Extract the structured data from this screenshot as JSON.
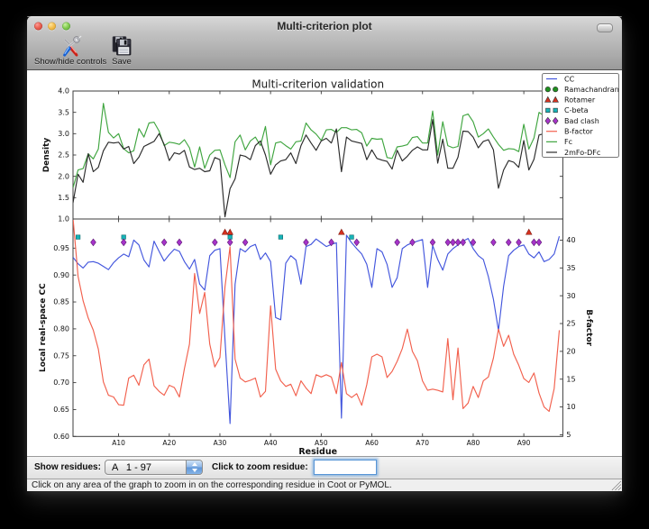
{
  "window": {
    "title": "Multi-criterion plot",
    "traffic_lights": [
      "close",
      "minimize",
      "zoom"
    ]
  },
  "toolbar": {
    "buttons": [
      {
        "label": "Show/hide controls",
        "icon": "tools-icon"
      },
      {
        "label": "Save",
        "icon": "save-icon"
      }
    ]
  },
  "controls": {
    "show_residues_label": "Show residues:",
    "chain_select_value": "A   1 - 97",
    "zoom_residue_label": "Click to zoom residue:",
    "zoom_input_value": "",
    "zoom_input_placeholder": ""
  },
  "status_bar": {
    "text": "Click on any area of the graph to zoom in on the corresponding residue in Coot or PyMOL."
  },
  "chart_data": {
    "type": "line",
    "title": "Multi-criterion validation",
    "xlabel": "Residue",
    "x_start": 1,
    "x_end": 97,
    "x_tick_values": [
      10,
      20,
      30,
      40,
      50,
      60,
      70,
      80,
      90
    ],
    "x_tick_labels": [
      "A10",
      "A20",
      "A30",
      "A40",
      "A50",
      "A60",
      "A70",
      "A80",
      "A90"
    ],
    "grid": false,
    "legend_position": "upper right",
    "legend": [
      {
        "name": "CC",
        "kind": "line",
        "color": "#4356dd"
      },
      {
        "name": "Ramachandran",
        "kind": "circle",
        "color": "#1f8f1f"
      },
      {
        "name": "Rotamer",
        "kind": "triangle",
        "color": "#d5311f"
      },
      {
        "name": "C-beta",
        "kind": "square",
        "color": "#17b4b8"
      },
      {
        "name": "Bad clash",
        "kind": "diamond",
        "color": "#a633c9"
      },
      {
        "name": "B-factor",
        "kind": "line",
        "color": "#f2604d"
      },
      {
        "name": "Fc",
        "kind": "line",
        "color": "#3fa53f"
      },
      {
        "name": "2mFo-DFc",
        "kind": "line",
        "color": "#2b2b2b"
      }
    ],
    "top_plot": {
      "ylabel": "Density",
      "ylim": [
        1.0,
        4.0
      ],
      "y_ticks": [
        1.0,
        1.5,
        2.0,
        2.5,
        3.0,
        3.5,
        4.0
      ],
      "series": [
        {
          "name": "Fc",
          "color": "#3fa53f",
          "values": [
            1.73,
            2.15,
            2.18,
            2.53,
            2.41,
            2.64,
            3.71,
            3.03,
            2.9,
            3.0,
            2.65,
            2.55,
            2.6,
            3.12,
            2.92,
            3.25,
            3.27,
            3.06,
            2.72,
            2.8,
            2.78,
            2.75,
            2.86,
            2.67,
            2.22,
            2.69,
            2.19,
            2.5,
            2.61,
            2.62,
            2.27,
            1.97,
            2.81,
            2.97,
            2.62,
            2.83,
            2.92,
            2.72,
            3.17,
            2.27,
            2.78,
            2.81,
            2.72,
            2.64,
            2.81,
            2.83,
            3.25,
            3.09,
            2.99,
            2.84,
            3.09,
            3.1,
            3.03,
            3.14,
            3.14,
            3.09,
            3.1,
            3.02,
            2.71,
            2.89,
            2.87,
            2.88,
            2.44,
            2.42,
            2.69,
            2.71,
            2.74,
            2.91,
            2.93,
            2.78,
            2.78,
            3.53,
            2.5,
            3.28,
            2.72,
            2.67,
            2.7,
            3.42,
            3.46,
            3.28,
            2.92,
            3.0,
            3.11,
            2.92,
            2.75,
            2.61,
            2.65,
            2.64,
            2.58,
            3.22,
            2.64,
            2.9,
            3.5,
            3.42,
            3.3,
            3.38,
            3.55
          ]
        },
        {
          "name": "2mFo-DFc",
          "color": "#2b2b2b",
          "values": [
            1.38,
            2.05,
            1.86,
            2.53,
            2.11,
            2.21,
            2.6,
            2.8,
            2.78,
            2.8,
            2.64,
            2.7,
            2.3,
            2.45,
            2.7,
            2.76,
            2.82,
            3.0,
            2.75,
            2.37,
            2.55,
            2.52,
            2.61,
            2.22,
            2.16,
            2.19,
            2.11,
            2.13,
            2.44,
            2.39,
            1.05,
            1.71,
            1.94,
            2.5,
            2.47,
            2.39,
            2.72,
            2.83,
            2.5,
            2.05,
            2.27,
            2.36,
            2.39,
            2.55,
            2.3,
            2.72,
            2.97,
            2.78,
            2.61,
            2.83,
            2.89,
            2.78,
            3.11,
            2.11,
            2.92,
            2.83,
            2.8,
            2.77,
            2.39,
            2.62,
            2.42,
            2.38,
            2.35,
            2.17,
            2.61,
            2.36,
            2.47,
            2.61,
            2.69,
            2.62,
            2.62,
            3.33,
            2.31,
            2.87,
            2.19,
            2.19,
            2.45,
            3.06,
            3.05,
            2.92,
            2.67,
            2.82,
            2.86,
            2.62,
            1.72,
            2.15,
            2.37,
            2.33,
            2.21,
            2.84,
            2.15,
            2.4,
            2.97,
            3.0,
            2.95,
            2.9,
            3.05
          ]
        }
      ]
    },
    "bottom_plot": {
      "ylabel_left": "Local real-space CC",
      "ylim_left": [
        0.6,
        1.0
      ],
      "y_ticks_left": [
        0.6,
        0.65,
        0.7,
        0.75,
        0.8,
        0.85,
        0.9,
        0.95
      ],
      "ylabel_right": "B-factor",
      "ylim_right": [
        4.7,
        43.8
      ],
      "y_ticks_right": [
        5,
        10,
        15,
        20,
        25,
        30,
        35,
        40
      ],
      "series": [
        {
          "name": "CC",
          "axis": "left",
          "color": "#4356dd",
          "values": [
            0.933,
            0.921,
            0.913,
            0.924,
            0.925,
            0.922,
            0.916,
            0.91,
            0.923,
            0.932,
            0.939,
            0.934,
            0.965,
            0.956,
            0.928,
            0.915,
            0.963,
            0.944,
            0.926,
            0.938,
            0.948,
            0.944,
            0.925,
            0.911,
            0.929,
            0.883,
            0.872,
            0.936,
            0.946,
            0.949,
            0.78,
            0.624,
            0.883,
            0.949,
            0.943,
            0.953,
            0.957,
            0.929,
            0.941,
            0.925,
            0.821,
            0.817,
            0.922,
            0.936,
            0.928,
            0.883,
            0.953,
            0.957,
            0.967,
            0.96,
            0.953,
            0.957,
            0.96,
            0.634,
            0.974,
            0.96,
            0.949,
            0.939,
            0.92,
            0.877,
            0.949,
            0.943,
            0.92,
            0.877,
            0.895,
            0.949,
            0.956,
            0.96,
            0.963,
            0.966,
            0.877,
            0.955,
            0.929,
            0.909,
            0.939,
            0.949,
            0.956,
            0.963,
            0.968,
            0.949,
            0.936,
            0.929,
            0.897,
            0.855,
            0.797,
            0.879,
            0.936,
            0.946,
            0.953,
            0.956,
            0.939,
            0.932,
            0.943,
            0.925,
            0.929,
            0.939,
            0.972
          ]
        },
        {
          "name": "B-factor",
          "axis": "right",
          "color": "#f2604d",
          "values": [
            44.0,
            33.5,
            29.1,
            26.0,
            23.8,
            20.4,
            14.5,
            12.1,
            11.8,
            10.4,
            10.3,
            15.2,
            15.7,
            13.9,
            17.6,
            18.6,
            13.8,
            12.8,
            12.1,
            13.9,
            13.5,
            11.8,
            16.9,
            21.3,
            34.0,
            26.8,
            30.6,
            21.3,
            17.2,
            18.9,
            31.6,
            38.8,
            18.6,
            15.2,
            14.5,
            14.8,
            15.2,
            11.8,
            12.8,
            28.2,
            16.8,
            14.7,
            13.7,
            14.1,
            12.0,
            14.7,
            13.4,
            12.4,
            15.8,
            15.4,
            15.8,
            15.4,
            12.4,
            18.0,
            12.4,
            11.7,
            12.4,
            10.3,
            14.0,
            19.0,
            19.5,
            19.0,
            15.3,
            16.4,
            18.2,
            20.5,
            24.0,
            20.0,
            18.3,
            14.7,
            13.0,
            13.2,
            13.0,
            12.7,
            22.3,
            11.3,
            20.6,
            9.7,
            10.7,
            13.7,
            11.7,
            14.7,
            15.4,
            18.8,
            24.0,
            20.9,
            22.9,
            19.5,
            17.5,
            15.1,
            14.4,
            16.1,
            12.5,
            10.0,
            9.2,
            13.3,
            23.8
          ]
        }
      ],
      "outlier_markers": [
        {
          "name": "Ramachandran",
          "marker": "circle",
          "color": "#1f8f1f",
          "edge": "#11570f",
          "y": 0.989,
          "residues": []
        },
        {
          "name": "Rotamer",
          "marker": "triangle",
          "color": "#d5311f",
          "edge": "#7e180e",
          "y": 0.9795,
          "residues": [
            31,
            32,
            54,
            91
          ]
        },
        {
          "name": "C-beta",
          "marker": "square",
          "color": "#17b4b8",
          "edge": "#0d686b",
          "y": 0.9705,
          "residues": [
            2,
            11,
            32,
            42,
            56
          ]
        },
        {
          "name": "Bad clash",
          "marker": "diamond",
          "color": "#a633c9",
          "edge": "#5e1a74",
          "y": 0.9608,
          "residues": [
            5,
            11,
            19,
            22,
            29,
            32,
            35,
            47,
            52,
            57,
            65,
            68,
            72,
            75,
            76,
            77,
            78,
            80,
            84,
            87,
            89,
            92,
            93
          ]
        }
      ]
    }
  }
}
